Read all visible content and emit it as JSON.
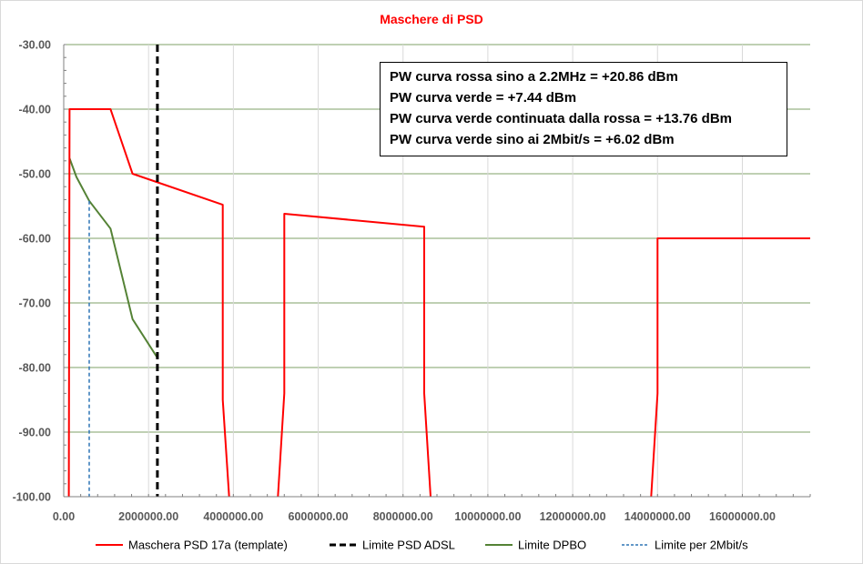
{
  "chart_data": {
    "type": "line",
    "title": "Maschere di PSD",
    "xlim": [
      0,
      17600000
    ],
    "ylim": [
      -100,
      -30
    ],
    "grid": true,
    "x_ticks": [
      "0.00",
      "2000000.00",
      "4000000.00",
      "6000000.00",
      "8000000.00",
      "10000000.00",
      "12000000.00",
      "14000000.00",
      "16000000.00"
    ],
    "x_tick_values": [
      0,
      2000000,
      4000000,
      6000000,
      8000000,
      10000000,
      12000000,
      14000000,
      16000000
    ],
    "y_ticks": [
      "-30.00",
      "-40.00",
      "-50.00",
      "-60.00",
      "-70.00",
      "-80.00",
      "-90.00",
      "-100.00"
    ],
    "y_tick_values": [
      -30,
      -40,
      -50,
      -60,
      -70,
      -80,
      -90,
      -100
    ],
    "legend_position": "bottom",
    "series": [
      {
        "name": "Maschera PSD 17a (template)",
        "color": "#ff0000",
        "style": "solid",
        "points": [
          [
            120000,
            -100
          ],
          [
            138000,
            -40
          ],
          [
            1104000,
            -40
          ],
          [
            1622000,
            -50
          ],
          [
            3750000,
            -54.8
          ],
          [
            3750000,
            -85
          ],
          [
            3900000,
            -100
          ],
          null,
          [
            5050000,
            -100
          ],
          [
            5200000,
            -84
          ],
          [
            5200000,
            -56.2
          ],
          [
            8500000,
            -58.2
          ],
          [
            8500000,
            -84
          ],
          [
            8650000,
            -100
          ],
          null,
          [
            13850000,
            -100
          ],
          [
            14000000,
            -84
          ],
          [
            14000000,
            -60
          ],
          [
            17600000,
            -60
          ]
        ]
      },
      {
        "name": "Limite PSD ADSL",
        "color": "#000000",
        "style": "dashed",
        "points": [
          [
            2208000,
            -30
          ],
          [
            2208000,
            -100
          ]
        ]
      },
      {
        "name": "Limite DPBO",
        "color": "#548235",
        "style": "solid",
        "points": [
          [
            138000,
            -47.6
          ],
          [
            300000,
            -50.5
          ],
          [
            600000,
            -54.2
          ],
          [
            1104000,
            -58.5
          ],
          [
            1622000,
            -72.5
          ],
          [
            2208000,
            -78.5
          ]
        ]
      },
      {
        "name": "Limite per 2Mbit/s",
        "color": "#2e75b6",
        "style": "dotted",
        "points": [
          [
            600000,
            -54.2
          ],
          [
            600000,
            -100
          ]
        ]
      }
    ],
    "annotations": [
      "PW curva rossa sino a 2.2MHz = +20.86 dBm",
      "PW curva verde  = +7.44 dBm",
      "PW curva verde continuata dalla rossa = +13.76 dBm",
      "PW curva verde sino ai 2Mbit/s = +6.02 dBm"
    ]
  }
}
